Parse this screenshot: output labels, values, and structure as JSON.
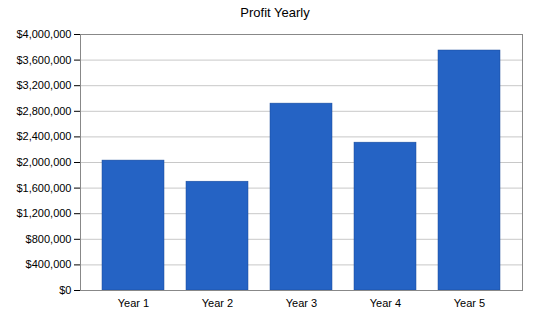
{
  "chart_data": {
    "type": "bar",
    "title": "Profit Yearly",
    "categories": [
      "Year 1",
      "Year 2",
      "Year 3",
      "Year 4",
      "Year 5"
    ],
    "values": [
      2030000,
      1700000,
      2920000,
      2310000,
      3750000
    ],
    "color": "#2563c4",
    "ylim": [
      0,
      4000000
    ],
    "yticks": [
      {
        "value": 0,
        "label": "$0"
      },
      {
        "value": 400000,
        "label": "$400,000"
      },
      {
        "value": 800000,
        "label": "$800,000"
      },
      {
        "value": 1200000,
        "label": "$1,200,000"
      },
      {
        "value": 1600000,
        "label": "$1,600,000"
      },
      {
        "value": 2000000,
        "label": "$2,000,000"
      },
      {
        "value": 2400000,
        "label": "$2,400,000"
      },
      {
        "value": 2800000,
        "label": "$2,800,000"
      },
      {
        "value": 3200000,
        "label": "$3,200,000"
      },
      {
        "value": 3600000,
        "label": "$3,600,000"
      },
      {
        "value": 4000000,
        "label": "$4,000,000"
      }
    ],
    "grid": true
  }
}
